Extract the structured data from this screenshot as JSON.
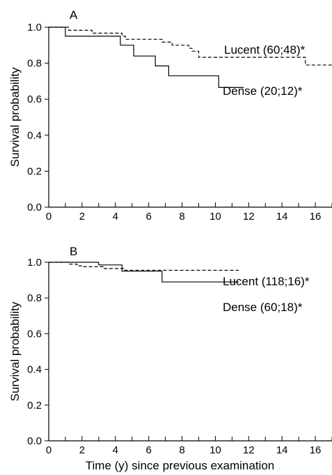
{
  "chart_data": [
    {
      "type": "line",
      "panel_label": "A",
      "ylabel": "Survival probability",
      "xlabel": "",
      "xlim": [
        0,
        17
      ],
      "ylim": [
        0,
        1
      ],
      "xticks": [
        0,
        2,
        4,
        6,
        8,
        10,
        12,
        14,
        16
      ],
      "yticks": [
        "0.0",
        "0.2",
        "0.4",
        "0.6",
        "0.8",
        "1.0"
      ],
      "grid": false,
      "series": [
        {
          "name": "Lucent (60;48)*",
          "style": "dashed",
          "points": [
            [
              0,
              1.0
            ],
            [
              1.2,
              1.0
            ],
            [
              1.2,
              0.983
            ],
            [
              2.6,
              0.983
            ],
            [
              2.6,
              0.967
            ],
            [
              4.4,
              0.967
            ],
            [
              4.4,
              0.95
            ],
            [
              4.6,
              0.95
            ],
            [
              4.6,
              0.933
            ],
            [
              6.8,
              0.933
            ],
            [
              6.8,
              0.917
            ],
            [
              7.4,
              0.917
            ],
            [
              7.4,
              0.9
            ],
            [
              8.4,
              0.9
            ],
            [
              8.4,
              0.883
            ],
            [
              8.6,
              0.883
            ],
            [
              8.6,
              0.867
            ],
            [
              9.0,
              0.867
            ],
            [
              9.0,
              0.833
            ],
            [
              15.4,
              0.833
            ],
            [
              15.4,
              0.79
            ],
            [
              17,
              0.79
            ]
          ]
        },
        {
          "name": "Dense (20;12)*",
          "style": "solid",
          "points": [
            [
              0,
              1.0
            ],
            [
              1.0,
              1.0
            ],
            [
              1.0,
              0.95
            ],
            [
              4.3,
              0.95
            ],
            [
              4.3,
              0.9
            ],
            [
              5.1,
              0.9
            ],
            [
              5.1,
              0.84
            ],
            [
              6.4,
              0.84
            ],
            [
              6.4,
              0.785
            ],
            [
              7.2,
              0.785
            ],
            [
              7.2,
              0.73
            ],
            [
              10.2,
              0.73
            ],
            [
              10.2,
              0.665
            ],
            [
              11.7,
              0.665
            ]
          ]
        }
      ]
    },
    {
      "type": "line",
      "panel_label": "B",
      "ylabel": "Survival probability",
      "xlabel": "Time (y) since previous examination",
      "xlim": [
        0,
        17
      ],
      "ylim": [
        0,
        1
      ],
      "xticks": [
        0,
        2,
        4,
        6,
        8,
        10,
        12,
        14,
        16
      ],
      "yticks": [
        "0.0",
        "0.2",
        "0.4",
        "0.6",
        "0.8",
        "1.0"
      ],
      "grid": false,
      "series": [
        {
          "name": "Lucent (118;16)*",
          "style": "dashed",
          "points": [
            [
              0,
              1.0
            ],
            [
              1.2,
              1.0
            ],
            [
              1.2,
              0.99
            ],
            [
              1.7,
              0.99
            ],
            [
              1.7,
              0.98
            ],
            [
              2.0,
              0.98
            ],
            [
              2.0,
              0.975
            ],
            [
              3.3,
              0.975
            ],
            [
              3.3,
              0.965
            ],
            [
              4.5,
              0.965
            ],
            [
              4.5,
              0.955
            ],
            [
              11.4,
              0.955
            ]
          ]
        },
        {
          "name": "Dense (60;18)*",
          "style": "solid",
          "points": [
            [
              0,
              1.0
            ],
            [
              3.0,
              1.0
            ],
            [
              3.0,
              0.985
            ],
            [
              4.4,
              0.985
            ],
            [
              4.4,
              0.95
            ],
            [
              6.8,
              0.95
            ],
            [
              6.8,
              0.89
            ],
            [
              11.4,
              0.89
            ]
          ]
        }
      ]
    }
  ]
}
